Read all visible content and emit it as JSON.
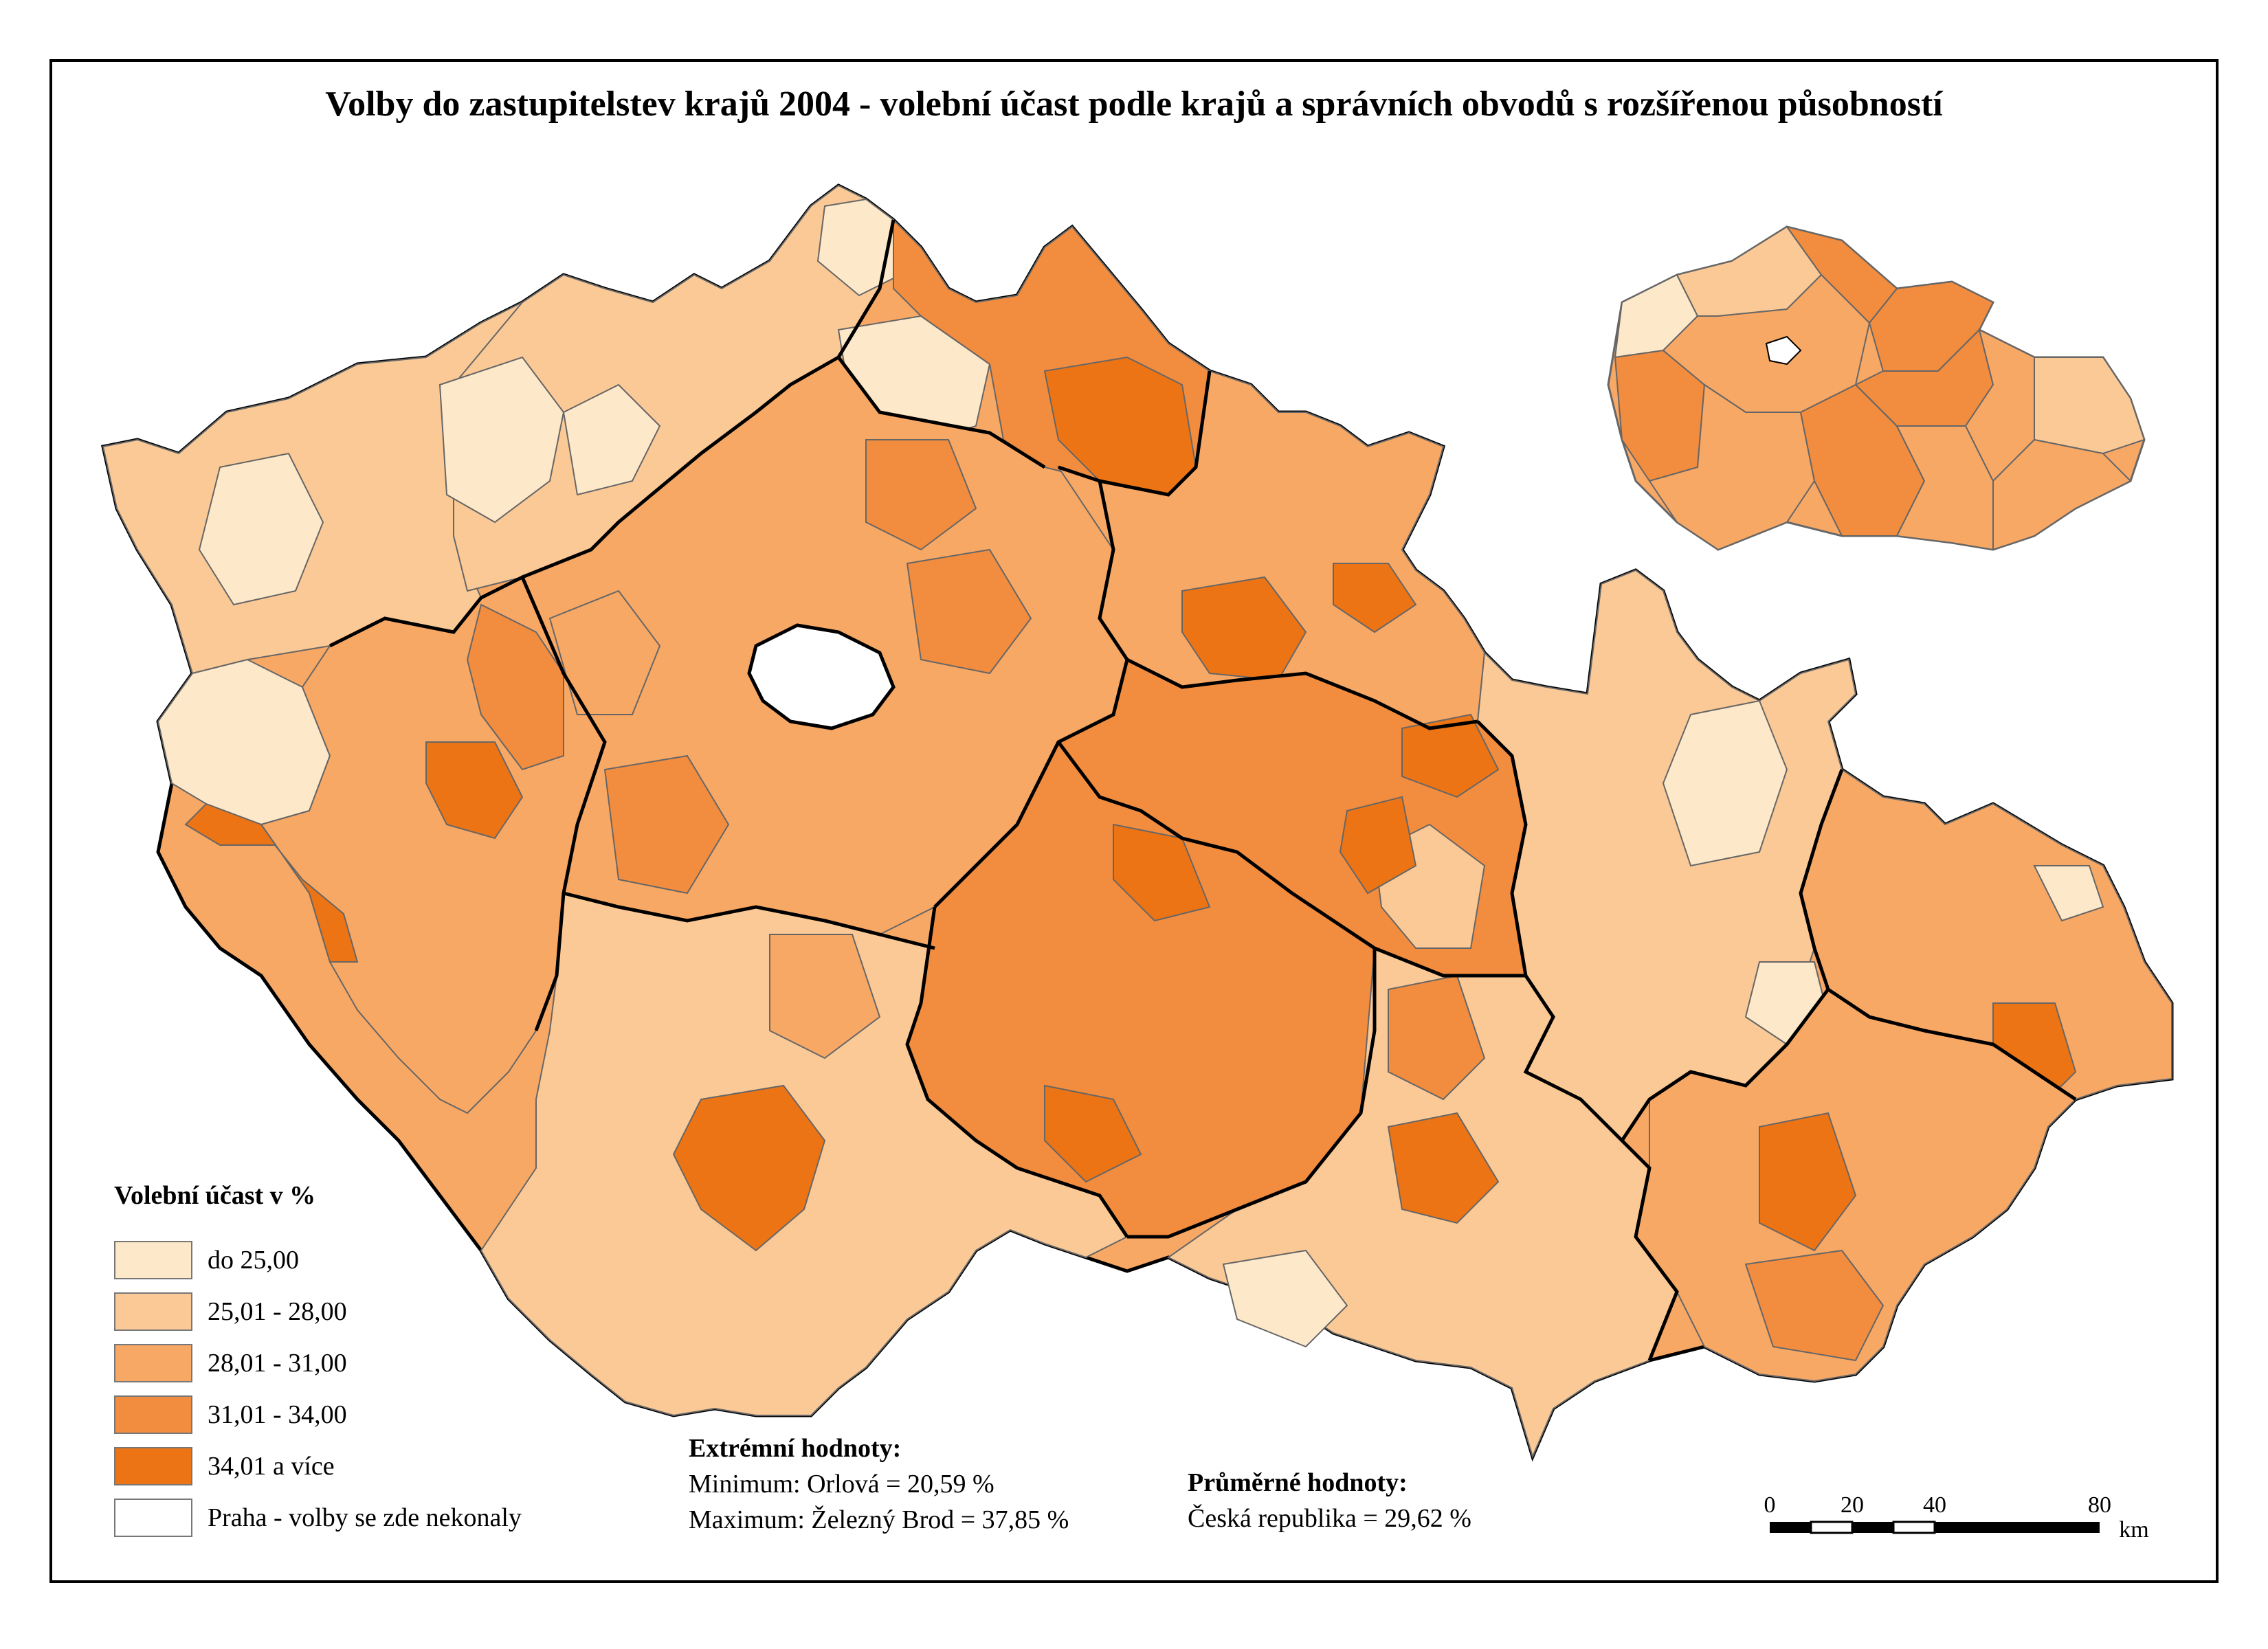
{
  "title": "Volby do zastupitelstev krajů 2004 - volební účast podle krajů a správních obvodů s rozšířenou působností",
  "colors": {
    "c1": "#fde8c9",
    "c2": "#fbc996",
    "c3": "#f8a865",
    "c4": "#f28c3e",
    "c5": "#ec7415",
    "none": "#ffffff",
    "border": "#666666"
  },
  "legend": {
    "title": "Volební účast v %",
    "items": [
      {
        "label": "do 25,00",
        "color": "#fde8c9"
      },
      {
        "label": "25,01 - 28,00",
        "color": "#fbc996"
      },
      {
        "label": "28,01 - 31,00",
        "color": "#f8a865"
      },
      {
        "label": "31,01 - 34,00",
        "color": "#f28c3e"
      },
      {
        "label": "34,01 a více",
        "color": "#ec7415"
      },
      {
        "label": "Praha - volby se zde nekonaly",
        "color": "#ffffff"
      }
    ]
  },
  "extremes": {
    "title": "Extrémní hodnoty:",
    "minimum": "Minimum: Orlová = 20,59 %",
    "maximum": "Maximum: Železný Brod = 37,85 %"
  },
  "average": {
    "title": "Průměrné hodnoty:",
    "value": "Česká republika = 29,62 %"
  },
  "scale": {
    "ticks": [
      "0",
      "20",
      "40",
      "80"
    ],
    "unit": "km"
  }
}
